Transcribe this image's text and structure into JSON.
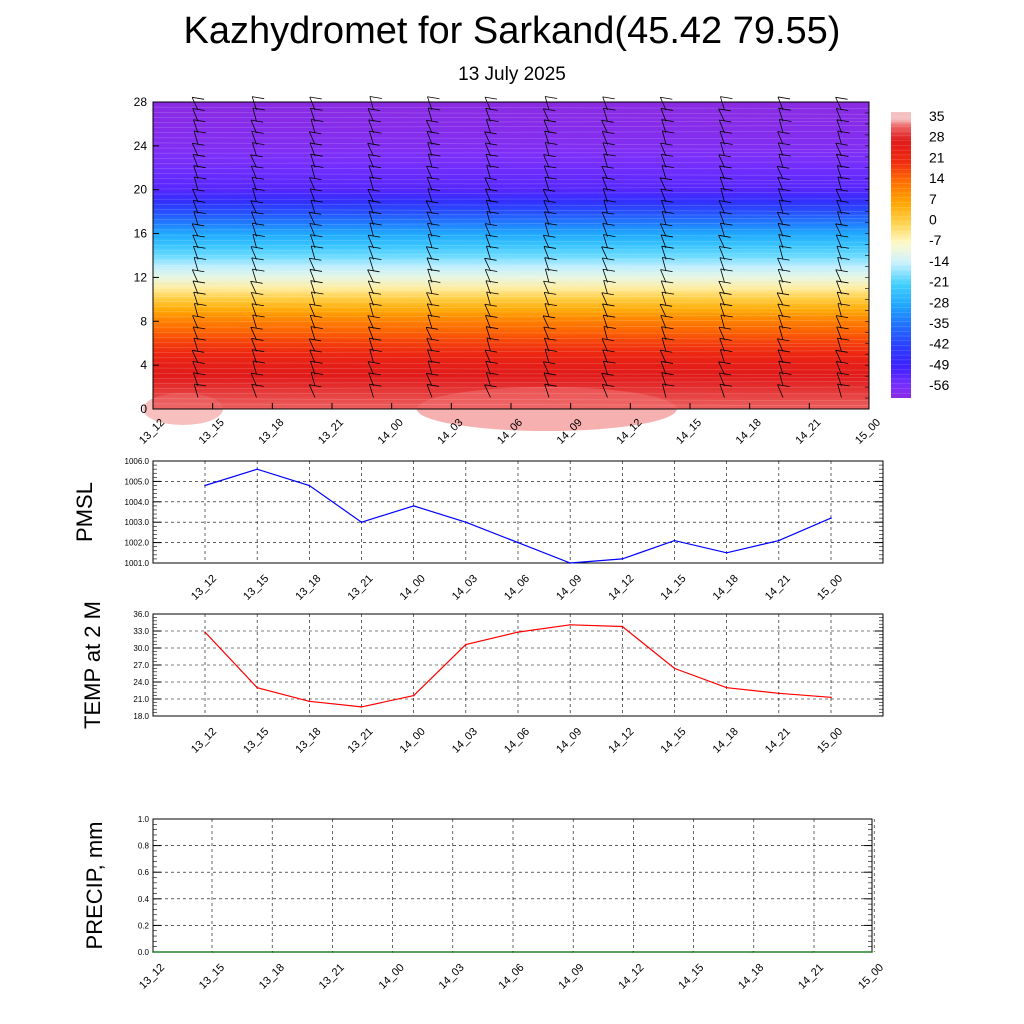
{
  "title": "Kazhydromet for Sarkand(45.42 79.55)",
  "subtitle": "13 July 2025",
  "chart_data": [
    {
      "type": "heatmap",
      "name": "temperature-height-section",
      "x_ticks": [
        "13_12",
        "13_15",
        "13_18",
        "13_21",
        "14_00",
        "14_03",
        "14_06",
        "14_09",
        "14_12",
        "14_15",
        "14_18",
        "14_21",
        "15_00"
      ],
      "y_ticks": [
        "0",
        "4",
        "8",
        "12",
        "16",
        "20",
        "24",
        "28"
      ],
      "ylim": [
        0,
        28
      ],
      "colorbar_labels": [
        "35",
        "28",
        "21",
        "14",
        "7",
        "0",
        "-7",
        "-14",
        "-21",
        "-28",
        "-35",
        "-42",
        "-49",
        "-56"
      ],
      "profile": [
        {
          "y": 0,
          "value": 33
        },
        {
          "y": 4,
          "value": 26
        },
        {
          "y": 8,
          "value": 12
        },
        {
          "y": 12,
          "value": -10
        },
        {
          "y": 16,
          "value": -28
        },
        {
          "y": 20,
          "value": -52
        },
        {
          "y": 24,
          "value": -58
        },
        {
          "y": 28,
          "value": -60
        }
      ],
      "overlay": "wind barbs",
      "colors": {
        "warm": "#e8231a",
        "neutral": "#fffacd",
        "cold": "#2a1cff",
        "coldest": "#8a30ff"
      }
    },
    {
      "type": "line",
      "ylabel": "PMSL",
      "ylim": [
        1001.0,
        1006.0
      ],
      "y_ticks": [
        "1001.0",
        "1002.0",
        "1003.0",
        "1004.0",
        "1005.0",
        "1006.0"
      ],
      "categories": [
        "13_12",
        "13_15",
        "13_18",
        "13_21",
        "14_00",
        "14_03",
        "14_06",
        "14_09",
        "14_12",
        "14_15",
        "14_18",
        "14_21",
        "15_00"
      ],
      "values": [
        1004.8,
        1005.6,
        1004.8,
        1003.0,
        1003.8,
        1003.0,
        1002.0,
        1001.0,
        1001.2,
        1002.1,
        1001.5,
        1002.1,
        1003.2
      ],
      "color": "#0000ff"
    },
    {
      "type": "line",
      "ylabel": "TEMP at 2 M",
      "ylim": [
        18.0,
        36.0
      ],
      "y_ticks": [
        "18.0",
        "21.0",
        "24.0",
        "27.0",
        "30.0",
        "33.0",
        "36.0"
      ],
      "categories": [
        "13_12",
        "13_15",
        "13_18",
        "13_21",
        "14_00",
        "14_03",
        "14_06",
        "14_09",
        "14_12",
        "14_15",
        "14_18",
        "14_21",
        "15_00"
      ],
      "values": [
        32.8,
        23.0,
        20.6,
        19.6,
        21.6,
        30.6,
        32.8,
        34.1,
        33.8,
        26.4,
        23.0,
        22.0,
        21.3
      ],
      "color": "#ff0000"
    },
    {
      "type": "line",
      "ylabel": "PRECIP, mm",
      "ylim": [
        0.0,
        1.0
      ],
      "y_ticks": [
        "0.0",
        "0.2",
        "0.4",
        "0.6",
        "0.8",
        "1.0"
      ],
      "categories": [
        "13_12",
        "13_15",
        "13_18",
        "13_21",
        "14_00",
        "14_03",
        "14_06",
        "14_09",
        "14_12",
        "14_15",
        "14_18",
        "14_21",
        "15_00"
      ],
      "values": [
        0,
        0,
        0,
        0,
        0,
        0,
        0,
        0,
        0,
        0,
        0,
        0,
        0
      ],
      "color": "#006400"
    }
  ]
}
